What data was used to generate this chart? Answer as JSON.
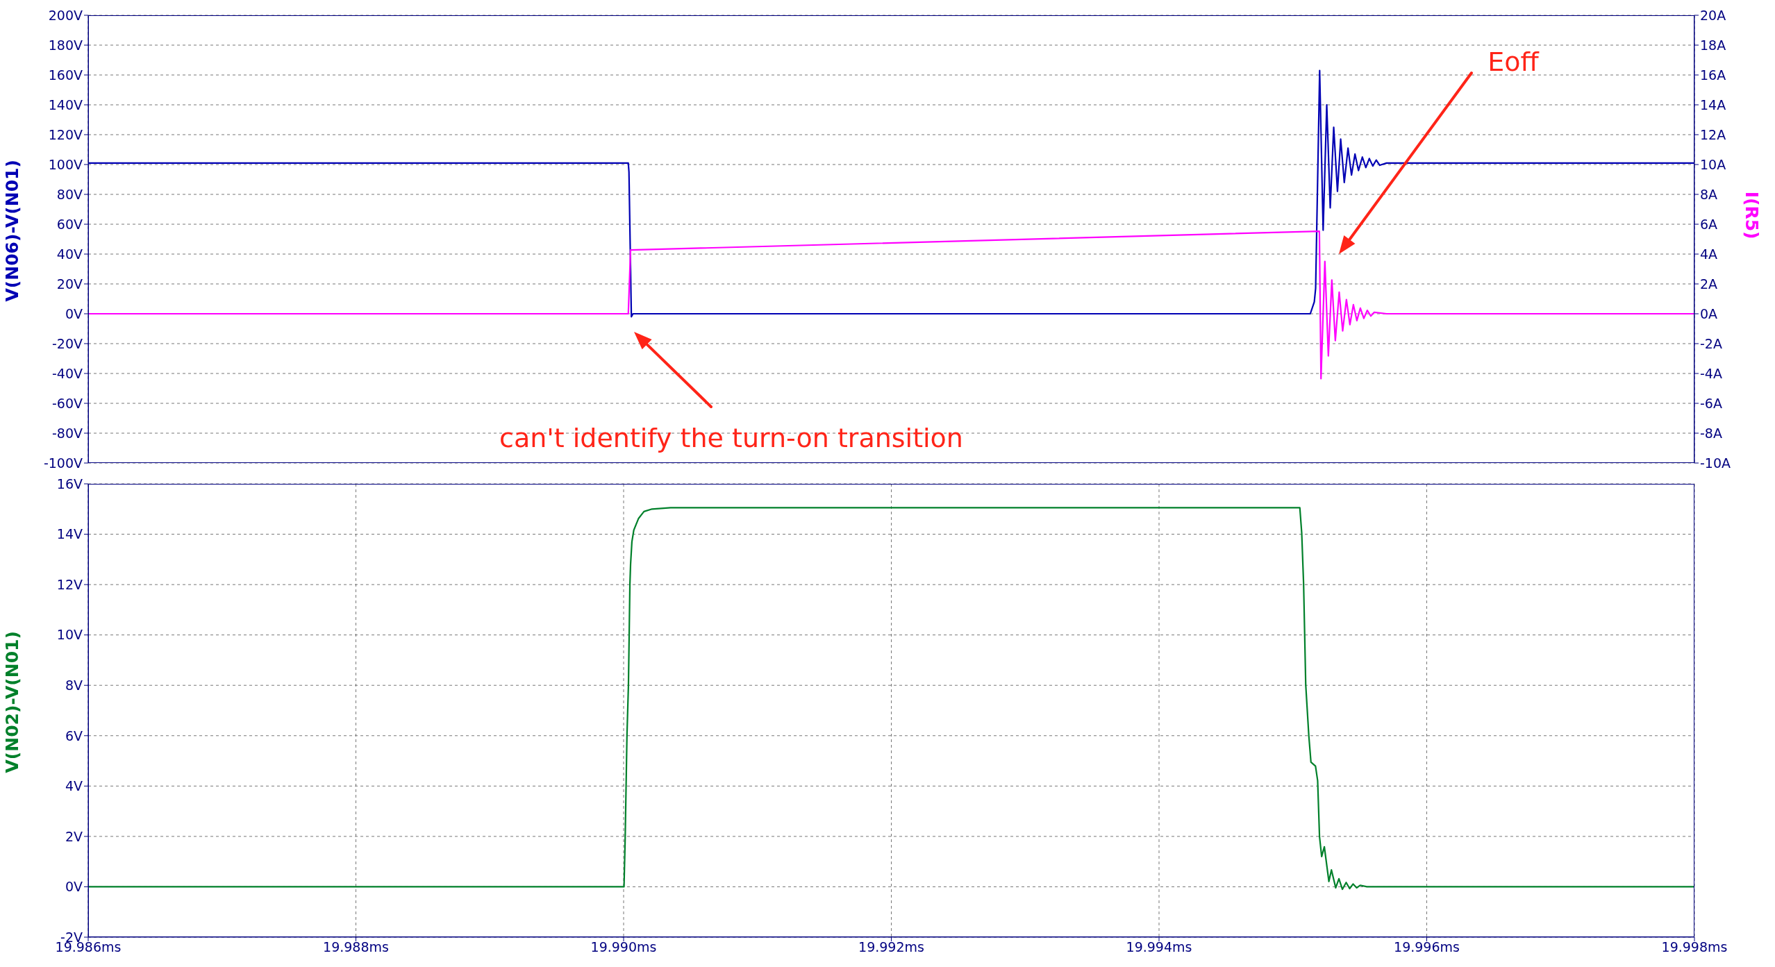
{
  "chart_data": [
    {
      "type": "line",
      "ylabel": "V(N06)-V(N01)",
      "y2label": "I(R5)",
      "xlim": [
        19.986,
        19.998
      ],
      "xticks": [
        {
          "value": 19.986,
          "label": null
        },
        {
          "value": 19.988,
          "label": null
        },
        {
          "value": 19.99,
          "label": null
        },
        {
          "value": 19.992,
          "label": null
        },
        {
          "value": 19.994,
          "label": null
        },
        {
          "value": 19.996,
          "label": null
        },
        {
          "value": 19.998,
          "label": null
        }
      ],
      "ylim": [
        -100,
        200
      ],
      "yticks": [
        {
          "value": -100,
          "label": "-100V"
        },
        {
          "value": -80,
          "label": "-80V"
        },
        {
          "value": -60,
          "label": "-60V"
        },
        {
          "value": -40,
          "label": "-40V"
        },
        {
          "value": -20,
          "label": "-20V"
        },
        {
          "value": 0,
          "label": "0V"
        },
        {
          "value": 20,
          "label": "20V"
        },
        {
          "value": 40,
          "label": "40V"
        },
        {
          "value": 60,
          "label": "60V"
        },
        {
          "value": 80,
          "label": "80V"
        },
        {
          "value": 100,
          "label": "100V"
        },
        {
          "value": 120,
          "label": "120V"
        },
        {
          "value": 140,
          "label": "140V"
        },
        {
          "value": 160,
          "label": "160V"
        },
        {
          "value": 180,
          "label": "180V"
        },
        {
          "value": 200,
          "label": "200V"
        }
      ],
      "y2lim": [
        -10,
        20
      ],
      "y2ticks": [
        {
          "value": -10,
          "label": "-10A"
        },
        {
          "value": -8,
          "label": "-8A"
        },
        {
          "value": -6,
          "label": "-6A"
        },
        {
          "value": -4,
          "label": "-4A"
        },
        {
          "value": -2,
          "label": "-2A"
        },
        {
          "value": 0,
          "label": "0A"
        },
        {
          "value": 2,
          "label": "2A"
        },
        {
          "value": 4,
          "label": "4A"
        },
        {
          "value": 6,
          "label": "6A"
        },
        {
          "value": 8,
          "label": "8A"
        },
        {
          "value": 10,
          "label": "10A"
        },
        {
          "value": 12,
          "label": "12A"
        },
        {
          "value": 14,
          "label": "14A"
        },
        {
          "value": 16,
          "label": "16A"
        },
        {
          "value": 18,
          "label": "18A"
        },
        {
          "value": 20,
          "label": "20A"
        }
      ],
      "grid": true,
      "tick_labels": "y",
      "series": [
        {
          "color": "#0000b4",
          "x": [
            19.986,
            19.990035,
            19.99004,
            19.990058,
            19.99007,
            19.99513,
            19.99516,
            19.99517,
            19.9952,
            19.995226,
            19.995253,
            19.995279,
            19.995305,
            19.995333,
            19.995357,
            19.995384,
            19.995412,
            19.995438,
            19.995464,
            19.99549,
            19.995519,
            19.995545,
            19.995571,
            19.995597,
            19.995623,
            19.995649,
            19.9957,
            19.998
          ],
          "values": [
            101,
            101,
            95,
            -2,
            0,
            0,
            8,
            17,
            163,
            56,
            140,
            71,
            125,
            82,
            117,
            88,
            111,
            93,
            107,
            96,
            105,
            98,
            104,
            99,
            103,
            99.5,
            101,
            101
          ]
        },
        {
          "color": "#ff00ff",
          "axis": "y2",
          "x": [
            19.986,
            19.990035,
            19.990052,
            19.995198,
            19.99521,
            19.995239,
            19.995265,
            19.995291,
            19.995317,
            19.995346,
            19.995372,
            19.9954,
            19.995426,
            19.995452,
            19.995478,
            19.995504,
            19.99553,
            19.995556,
            19.995582,
            19.995608,
            19.9957,
            19.998
          ],
          "values": [
            0,
            0,
            4.27,
            5.53,
            -4.35,
            3.51,
            -2.82,
            2.26,
            -1.8,
            1.45,
            -1.15,
            0.95,
            -0.73,
            0.61,
            -0.46,
            0.38,
            -0.31,
            0.23,
            -0.15,
            0.1,
            0,
            0
          ]
        }
      ],
      "annotations": [
        "can't identify the turn-on transition",
        "Eoff"
      ]
    },
    {
      "type": "line",
      "ylabel": "V(N02)-V(N01)",
      "xlim": [
        19.986,
        19.998
      ],
      "xticks": [
        {
          "value": 19.986,
          "label": "19.986ms"
        },
        {
          "value": 19.988,
          "label": "19.988ms"
        },
        {
          "value": 19.99,
          "label": "19.990ms"
        },
        {
          "value": 19.992,
          "label": "19.992ms"
        },
        {
          "value": 19.994,
          "label": "19.994ms"
        },
        {
          "value": 19.996,
          "label": "19.996ms"
        },
        {
          "value": 19.998,
          "label": "19.998ms"
        }
      ],
      "ylim": [
        -2,
        16
      ],
      "yticks": [
        {
          "value": -2,
          "label": "-2V"
        },
        {
          "value": 0,
          "label": "0V"
        },
        {
          "value": 2,
          "label": "2V"
        },
        {
          "value": 4,
          "label": "4V"
        },
        {
          "value": 6,
          "label": "6V"
        },
        {
          "value": 8,
          "label": "8V"
        },
        {
          "value": 10,
          "label": "10V"
        },
        {
          "value": 12,
          "label": "12V"
        },
        {
          "value": 14,
          "label": "14V"
        },
        {
          "value": 16,
          "label": "16V"
        }
      ],
      "grid": true,
      "series": [
        {
          "color": "#00802a",
          "x": [
            19.986,
            19.990003,
            19.990012,
            19.990025,
            19.990036,
            19.990047,
            19.990052,
            19.990062,
            19.990076,
            19.990112,
            19.990152,
            19.990212,
            19.990351,
            19.995052,
            19.995066,
            19.99508,
            19.995096,
            19.995119,
            19.995135,
            19.995169,
            19.995185,
            19.995199,
            19.995215,
            19.995235,
            19.995269,
            19.995288,
            19.99532,
            19.995344,
            19.99537,
            19.995398,
            19.995424,
            19.99545,
            19.995477,
            19.995503,
            19.995553,
            19.998
          ],
          "values": [
            0,
            0,
            2,
            6,
            8,
            12,
            12.8,
            13.7,
            14.16,
            14.63,
            14.9,
            15,
            15.05,
            15.05,
            14.05,
            12.04,
            8.02,
            6,
            4.95,
            4.79,
            4.21,
            1.99,
            1.2,
            1.59,
            0.21,
            0.67,
            -0.04,
            0.32,
            -0.1,
            0.17,
            -0.07,
            0.11,
            -0.04,
            0.06,
            0,
            0
          ]
        }
      ]
    }
  ]
}
